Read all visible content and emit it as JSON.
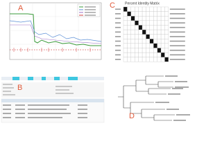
{
  "panels": {
    "a": {
      "label": "A"
    },
    "b": {
      "label": "B"
    },
    "c": {
      "label": "C",
      "title": "Percent Identity Matrix"
    },
    "d": {
      "label": "D"
    }
  }
}
